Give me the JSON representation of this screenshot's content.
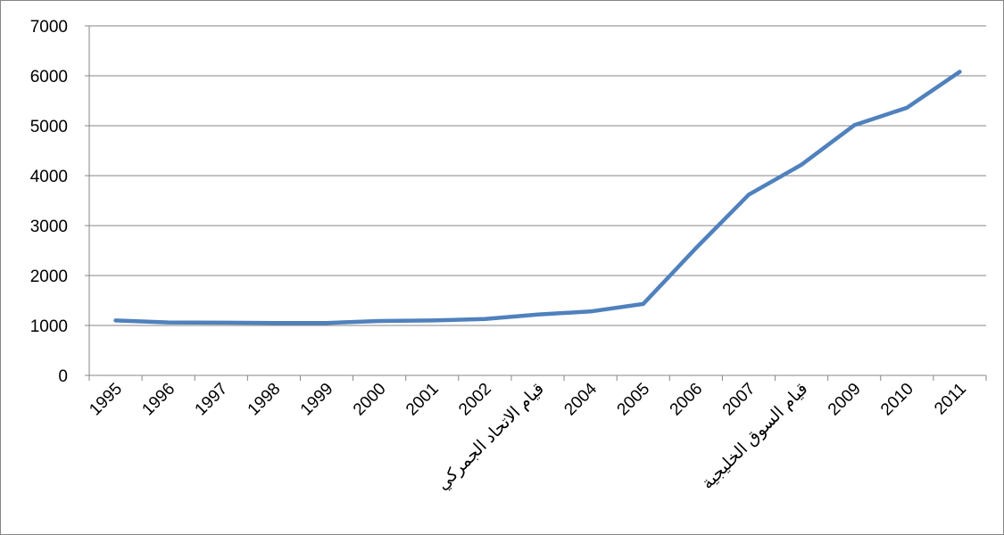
{
  "chart_data": {
    "type": "line",
    "categories": [
      "1995",
      "1996",
      "1997",
      "1998",
      "1999",
      "2000",
      "2001",
      "2002",
      "قيام الاتحاد الجمركي",
      "2004",
      "2005",
      "2006",
      "2007",
      "قيام السوق الخليجية",
      "2009",
      "2010",
      "2011"
    ],
    "series": [
      {
        "values": [
          1100,
          1060,
          1055,
          1050,
          1050,
          1090,
          1100,
          1130,
          1220,
          1280,
          1430,
          2550,
          3620,
          4220,
          5010,
          5360,
          6080
        ]
      }
    ],
    "ylim": [
      0,
      7000
    ],
    "yticks": [
      0,
      1000,
      2000,
      3000,
      4000,
      5000,
      6000,
      7000
    ],
    "grid": true,
    "legend": "none",
    "colors": {
      "line": "#4F81BD",
      "grid": "#868686",
      "axis": "#868686"
    }
  }
}
